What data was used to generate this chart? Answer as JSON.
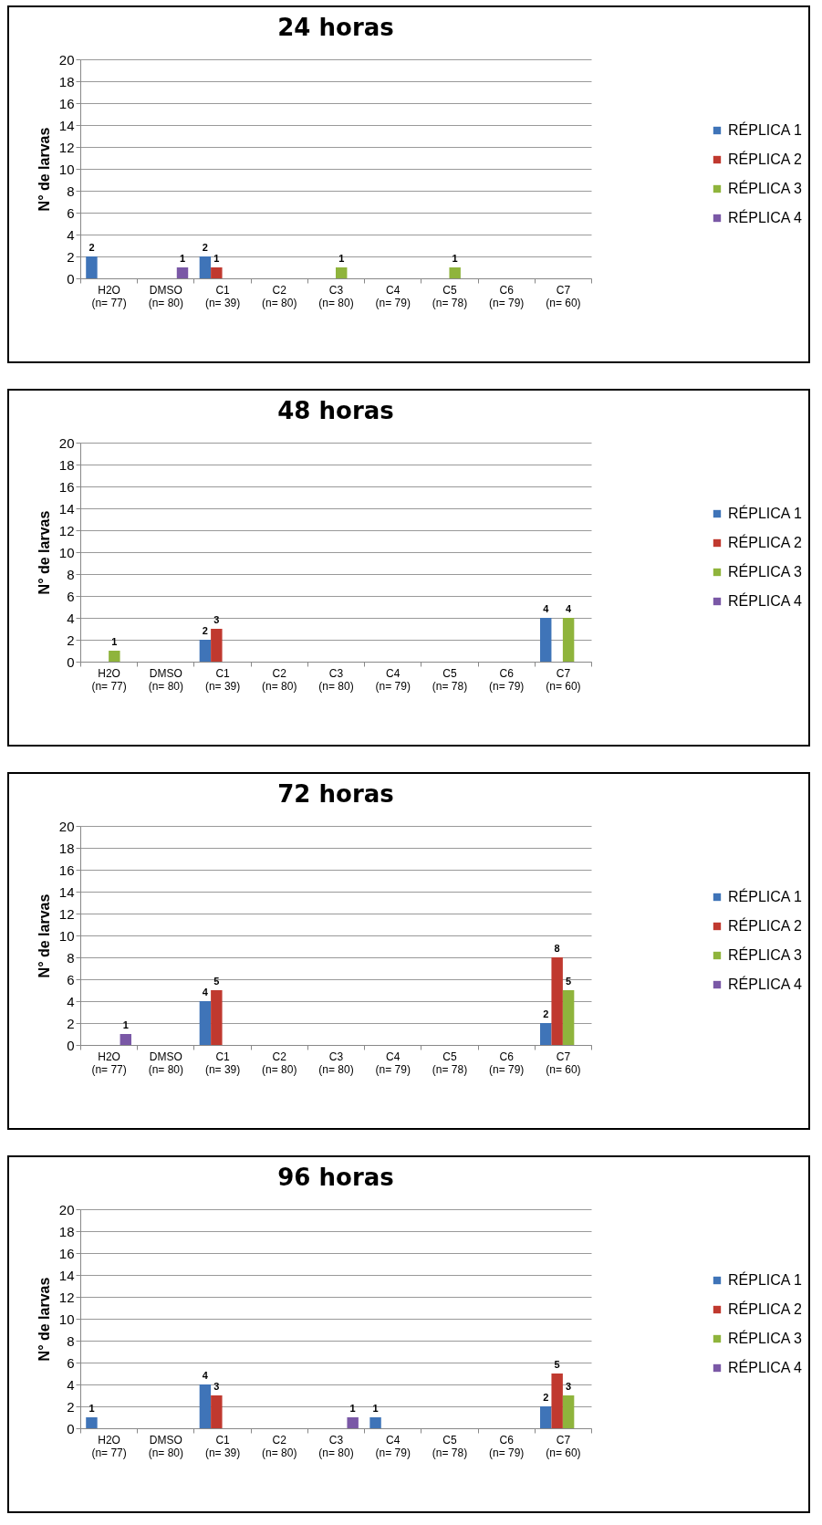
{
  "chart_data": [
    {
      "type": "bar",
      "title": "24 horas",
      "ylabel": "N° de larvas",
      "categories": [
        "H2O (n= 77)",
        "DMSO (n= 80)",
        "C1 (n= 39)",
        "C2 (n= 80)",
        "C3 (n= 80)",
        "C4 (n= 79)",
        "C5 (n= 78)",
        "C6 (n= 79)",
        "C7 (n= 60)"
      ],
      "series": [
        {
          "name": "RÉPLICA 1",
          "color": "#3f74b8",
          "values": [
            2,
            null,
            2,
            null,
            null,
            null,
            null,
            null,
            null
          ]
        },
        {
          "name": "RÉPLICA 2",
          "color": "#c0392f",
          "values": [
            null,
            null,
            1,
            null,
            null,
            null,
            null,
            null,
            null
          ]
        },
        {
          "name": "RÉPLICA 3",
          "color": "#8fb43c",
          "values": [
            null,
            null,
            null,
            null,
            1,
            null,
            1,
            null,
            null
          ]
        },
        {
          "name": "RÉPLICA 4",
          "color": "#7a58a6",
          "values": [
            null,
            1,
            null,
            null,
            null,
            null,
            null,
            null,
            null
          ]
        }
      ],
      "ylim": [
        0,
        20
      ],
      "yticks": [
        0,
        2,
        4,
        6,
        8,
        10,
        12,
        14,
        16,
        18,
        20
      ],
      "grid": "y",
      "legend": "right",
      "data_labels": true
    },
    {
      "type": "bar",
      "title": "48 horas",
      "ylabel": "N° de larvas",
      "categories": [
        "H2O (n= 77)",
        "DMSO (n= 80)",
        "C1 (n= 39)",
        "C2 (n= 80)",
        "C3 (n= 80)",
        "C4 (n= 79)",
        "C5 (n= 78)",
        "C6 (n= 79)",
        "C7 (n= 60)"
      ],
      "series": [
        {
          "name": "RÉPLICA 1",
          "color": "#3f74b8",
          "values": [
            null,
            null,
            2,
            null,
            null,
            null,
            null,
            null,
            4
          ]
        },
        {
          "name": "RÉPLICA 2",
          "color": "#c0392f",
          "values": [
            null,
            null,
            3,
            null,
            null,
            null,
            null,
            null,
            null
          ]
        },
        {
          "name": "RÉPLICA 3",
          "color": "#8fb43c",
          "values": [
            1,
            null,
            null,
            null,
            null,
            null,
            null,
            null,
            4
          ]
        },
        {
          "name": "RÉPLICA 4",
          "color": "#7a58a6",
          "values": [
            null,
            null,
            null,
            null,
            null,
            null,
            null,
            null,
            null
          ]
        }
      ],
      "ylim": [
        0,
        20
      ],
      "yticks": [
        0,
        2,
        4,
        6,
        8,
        10,
        12,
        14,
        16,
        18,
        20
      ],
      "grid": "y",
      "legend": "right",
      "data_labels": true
    },
    {
      "type": "bar",
      "title": "72 horas",
      "ylabel": "N° de larvas",
      "categories": [
        "H2O (n= 77)",
        "DMSO (n= 80)",
        "C1 (n= 39)",
        "C2 (n= 80)",
        "C3 (n= 80)",
        "C4 (n= 79)",
        "C5 (n= 78)",
        "C6 (n= 79)",
        "C7 (n= 60)"
      ],
      "series": [
        {
          "name": "RÉPLICA 1",
          "color": "#3f74b8",
          "values": [
            null,
            null,
            4,
            null,
            null,
            null,
            null,
            null,
            2
          ]
        },
        {
          "name": "RÉPLICA 2",
          "color": "#c0392f",
          "values": [
            null,
            null,
            5,
            null,
            null,
            null,
            null,
            null,
            8
          ]
        },
        {
          "name": "RÉPLICA 3",
          "color": "#8fb43c",
          "values": [
            null,
            null,
            null,
            null,
            null,
            null,
            null,
            null,
            5
          ]
        },
        {
          "name": "RÉPLICA 4",
          "color": "#7a58a6",
          "values": [
            1,
            null,
            null,
            null,
            null,
            null,
            null,
            null,
            null
          ]
        }
      ],
      "ylim": [
        0,
        20
      ],
      "yticks": [
        0,
        2,
        4,
        6,
        8,
        10,
        12,
        14,
        16,
        18,
        20
      ],
      "grid": "y",
      "legend": "right",
      "data_labels": true
    },
    {
      "type": "bar",
      "title": "96 horas",
      "ylabel": "N° de larvas",
      "categories": [
        "H2O (n= 77)",
        "DMSO (n= 80)",
        "C1 (n= 39)",
        "C2 (n= 80)",
        "C3 (n= 80)",
        "C4 (n= 79)",
        "C5 (n= 78)",
        "C6 (n= 79)",
        "C7 (n= 60)"
      ],
      "series": [
        {
          "name": "RÉPLICA 1",
          "color": "#3f74b8",
          "values": [
            1,
            null,
            4,
            null,
            null,
            1,
            null,
            null,
            2
          ]
        },
        {
          "name": "RÉPLICA 2",
          "color": "#c0392f",
          "values": [
            null,
            null,
            3,
            null,
            null,
            null,
            null,
            null,
            5
          ]
        },
        {
          "name": "RÉPLICA 3",
          "color": "#8fb43c",
          "values": [
            null,
            null,
            null,
            null,
            null,
            null,
            null,
            null,
            3
          ]
        },
        {
          "name": "RÉPLICA 4",
          "color": "#7a58a6",
          "values": [
            null,
            null,
            null,
            null,
            1,
            null,
            null,
            null,
            null
          ]
        }
      ],
      "ylim": [
        0,
        20
      ],
      "yticks": [
        0,
        2,
        4,
        6,
        8,
        10,
        12,
        14,
        16,
        18,
        20
      ],
      "grid": "y",
      "legend": "right",
      "data_labels": true
    }
  ]
}
